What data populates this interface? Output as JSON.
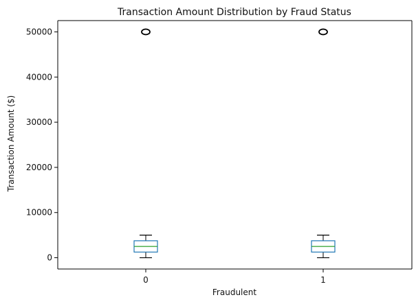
{
  "chart_data": {
    "type": "box",
    "title": "Transaction Amount Distribution by Fraud Status",
    "xlabel": "Fraudulent",
    "ylabel": "Transaction Amount ($)",
    "ylim": [
      -2500,
      52500
    ],
    "yticks": [
      0,
      10000,
      20000,
      30000,
      40000,
      50000
    ],
    "categories": [
      "0",
      "1"
    ],
    "boxes": [
      {
        "category": "0",
        "whisker_low": 0,
        "q1": 1250,
        "median": 2500,
        "q3": 3750,
        "whisker_high": 5000,
        "outliers": [
          50000
        ]
      },
      {
        "category": "1",
        "whisker_low": 0,
        "q1": 1250,
        "median": 2500,
        "q3": 3750,
        "whisker_high": 5000,
        "outliers": [
          50000
        ]
      }
    ],
    "grid": false,
    "colors": {
      "box": "#1f77b4",
      "median": "#2ca02c",
      "whisker": "#000000",
      "axis": "#000000"
    }
  }
}
